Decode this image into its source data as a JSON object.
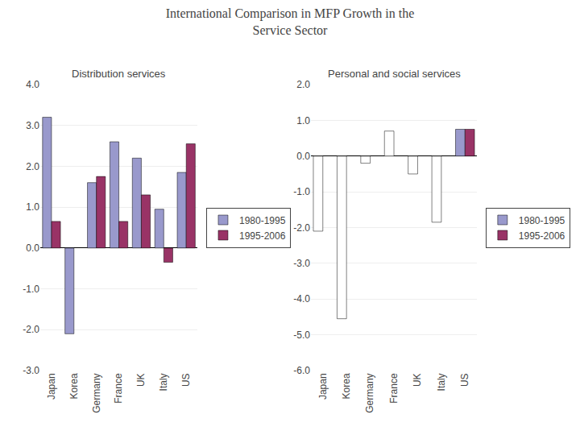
{
  "title": "International Comparison in MFP Growth in the\nService Sector",
  "chart_data": [
    {
      "type": "bar",
      "title": "Distribution services",
      "categories": [
        "Japan",
        "Korea",
        "Germany",
        "France",
        "UK",
        "Italy",
        "US"
      ],
      "series": [
        {
          "name": "1980-1995",
          "color": "#9999cc",
          "values": [
            3.2,
            -2.1,
            1.6,
            2.6,
            2.2,
            0.95,
            1.85
          ]
        },
        {
          "name": "1995-2006",
          "color": "#993366",
          "values": [
            0.65,
            null,
            1.75,
            0.65,
            1.3,
            -0.35,
            2.55
          ]
        }
      ],
      "ylim": [
        -3.0,
        4.0
      ],
      "yticks": [
        {
          "value": -3.0,
          "label": "-3.0"
        },
        {
          "value": -2.0,
          "label": "-2.0"
        },
        {
          "value": -1.0,
          "label": "-1.0"
        },
        {
          "value": 0.0,
          "label": "0.0"
        },
        {
          "value": 1.0,
          "label": "1.0"
        },
        {
          "value": 2.0,
          "label": "2.0"
        },
        {
          "value": 3.0,
          "label": "3.0"
        },
        {
          "value": 4.0,
          "label": "4.0"
        }
      ],
      "grid": true,
      "legend": "right"
    },
    {
      "type": "bar",
      "title": "Personal and social services",
      "categories": [
        "Japan",
        "Korea",
        "Germany",
        "France",
        "UK",
        "Italy",
        "US"
      ],
      "series": [
        {
          "name": "1980-1995",
          "color": "#9999cc",
          "colors": [
            "#ffffff",
            "#ffffff",
            "#ffffff",
            "#ffffff",
            "#ffffff",
            "#ffffff",
            "#9999cc"
          ],
          "values": [
            -2.1,
            -4.55,
            -0.2,
            0.7,
            -0.5,
            -1.85,
            0.75
          ]
        },
        {
          "name": "1995-2006",
          "color": "#993366",
          "values": [
            null,
            null,
            null,
            null,
            null,
            null,
            0.75
          ]
        }
      ],
      "ylim": [
        -6.0,
        2.0
      ],
      "yticks": [
        {
          "value": -6.0,
          "label": "-6.0"
        },
        {
          "value": -5.0,
          "label": "-5.0"
        },
        {
          "value": -4.0,
          "label": "-4.0"
        },
        {
          "value": -3.0,
          "label": "-3.0"
        },
        {
          "value": -2.0,
          "label": "-2.0"
        },
        {
          "value": -1.0,
          "label": "-1.0"
        },
        {
          "value": 0.0,
          "label": "0.0"
        },
        {
          "value": 1.0,
          "label": "1.0"
        },
        {
          "value": 2.0,
          "label": "2.0"
        }
      ],
      "grid": true,
      "legend": "right"
    }
  ]
}
